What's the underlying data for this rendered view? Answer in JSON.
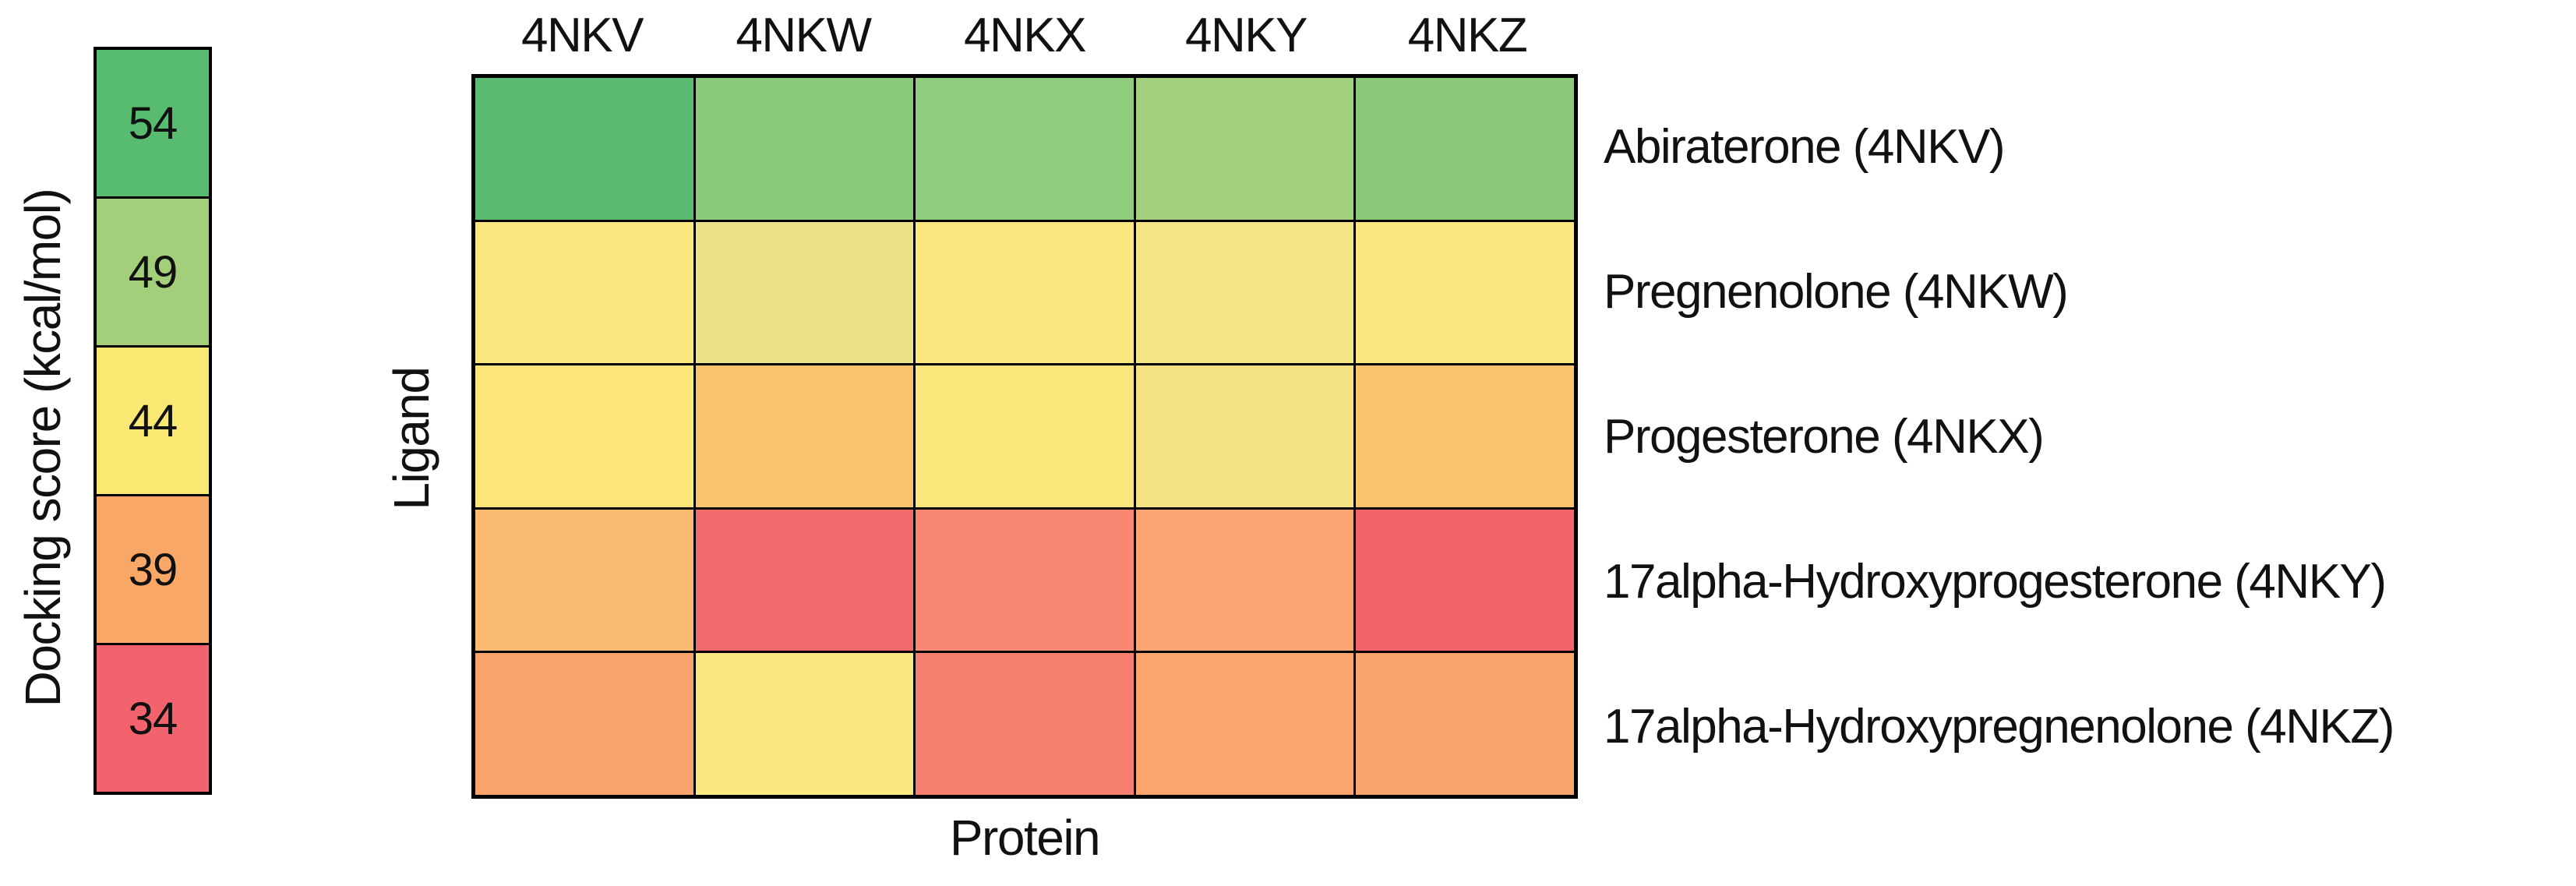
{
  "colorbar": {
    "axis_label": "Docking score (kcal/mol)",
    "items": [
      {
        "label": "54",
        "color": "#57BB70"
      },
      {
        "label": "49",
        "color": "#A3CE7A"
      },
      {
        "label": "44",
        "color": "#FAE873"
      },
      {
        "label": "39",
        "color": "#F8A766"
      },
      {
        "label": "34",
        "color": "#F2636D"
      }
    ]
  },
  "heatmap": {
    "x_axis_label": "Protein",
    "y_axis_label": "Ligand",
    "columns": [
      "4NKV",
      "4NKW",
      "4NKX",
      "4NKY",
      "4NKZ"
    ],
    "row_labels": [
      "Abiraterone (4NKV)",
      "Pregnenolone (4NKW)",
      "Progesterone (4NKX)",
      "17alpha-Hydroxyprogesterone (4NKY)",
      "17alpha-Hydroxypregnenolone (4NKZ)"
    ]
  },
  "chart_data": {
    "type": "heatmap",
    "title": "",
    "xlabel": "Protein",
    "ylabel": "Ligand",
    "x_categories": [
      "4NKV",
      "4NKW",
      "4NKX",
      "4NKY",
      "4NKZ"
    ],
    "y_categories": [
      "Abiraterone (4NKV)",
      "Pregnenolone (4NKW)",
      "Progesterone (4NKX)",
      "17alpha-Hydroxyprogesterone (4NKY)",
      "17alpha-Hydroxypregnenolone (4NKZ)"
    ],
    "colorbar": {
      "label": "Docking score (kcal/mol)",
      "tick_values": [
        54,
        49,
        44,
        39,
        34
      ],
      "tick_colors": [
        "#57BB70",
        "#A3CE7A",
        "#FAE873",
        "#F8A766",
        "#F2636D"
      ],
      "position": "left"
    },
    "cell_colors": [
      [
        "#5ABC72",
        "#8BCA7B",
        "#90CC7E",
        "#A2D07F",
        "#8BC878"
      ],
      [
        "#FCE77E",
        "#ECE28A",
        "#FBE77D",
        "#F4E484",
        "#FBE77E"
      ],
      [
        "#FCE67C",
        "#F9C36E",
        "#FBE67B",
        "#F4E182",
        "#F9C26D"
      ],
      [
        "#FABB70",
        "#F56A6C",
        "#F98772",
        "#FAA572",
        "#F4636C"
      ],
      [
        "#F9A26C",
        "#FBE980",
        "#F67F6F",
        "#FAA470",
        "#F9A36D"
      ]
    ],
    "approx_values_estimated_from_color": [
      [
        54,
        51.5,
        51,
        50,
        52
      ],
      [
        44,
        45,
        44,
        44.5,
        44
      ],
      [
        44,
        41.5,
        44,
        44.5,
        41.5
      ],
      [
        40.5,
        34.5,
        36.5,
        39,
        34
      ],
      [
        39,
        44,
        36,
        39,
        39
      ]
    ],
    "grid_line_color": "#000000",
    "legend_position": "left"
  }
}
